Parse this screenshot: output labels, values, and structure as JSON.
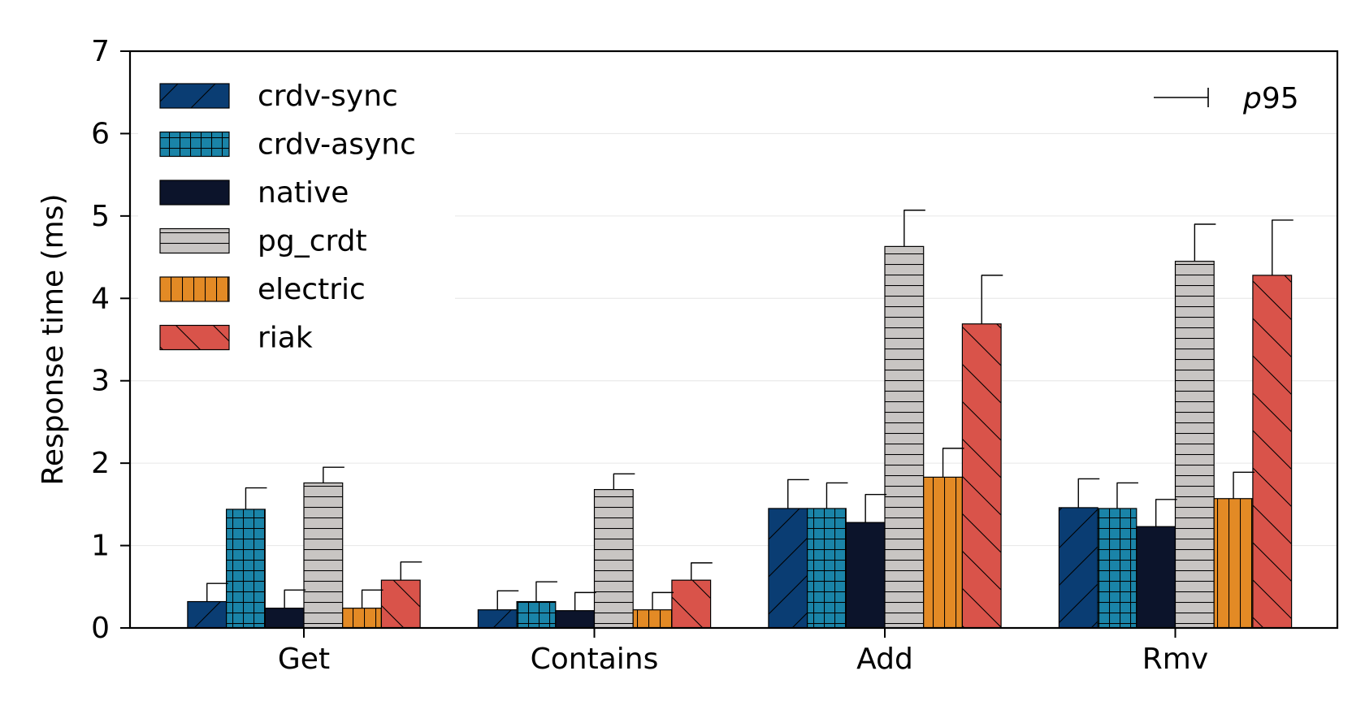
{
  "chart_data": {
    "type": "bar",
    "title": "",
    "xlabel": "",
    "ylabel": "Response time (ms)",
    "ylim": [
      0,
      7
    ],
    "yticks": [
      "0",
      "1",
      "2",
      "3",
      "4",
      "5",
      "6",
      "7"
    ],
    "grid": "horizontal, light",
    "legend_position": "top-left",
    "errorbar_label_prefix": "p",
    "errorbar_label_suffix": "95",
    "categories": [
      "Get",
      "Contains",
      "Add",
      "Rmv"
    ],
    "series": [
      {
        "name": "crdv-sync",
        "color": "#0a3d73",
        "pattern": "diag-fwd",
        "values": [
          0.32,
          0.22,
          1.45,
          1.46
        ],
        "p95": [
          0.54,
          0.45,
          1.8,
          1.81
        ]
      },
      {
        "name": "crdv-async",
        "color": "#1a84a8",
        "pattern": "grid",
        "values": [
          1.44,
          0.32,
          1.45,
          1.45
        ],
        "p95": [
          1.7,
          0.56,
          1.76,
          1.76
        ]
      },
      {
        "name": "native",
        "color": "#0c142b",
        "pattern": "none",
        "values": [
          0.24,
          0.21,
          1.28,
          1.23
        ],
        "p95": [
          0.46,
          0.43,
          1.62,
          1.56
        ]
      },
      {
        "name": "pg_crdt",
        "color": "#c8c5c3",
        "pattern": "horizontal",
        "values": [
          1.76,
          1.68,
          4.63,
          4.45
        ],
        "p95": [
          1.95,
          1.87,
          5.07,
          4.9
        ]
      },
      {
        "name": "electric",
        "color": "#e38a25",
        "pattern": "vertical",
        "values": [
          0.24,
          0.22,
          1.83,
          1.57
        ],
        "p95": [
          0.46,
          0.43,
          2.18,
          1.89
        ]
      },
      {
        "name": "riak",
        "color": "#d9534a",
        "pattern": "diag-back",
        "values": [
          0.58,
          0.58,
          3.69,
          4.28
        ],
        "p95": [
          0.8,
          0.79,
          4.28,
          4.95
        ]
      }
    ]
  }
}
